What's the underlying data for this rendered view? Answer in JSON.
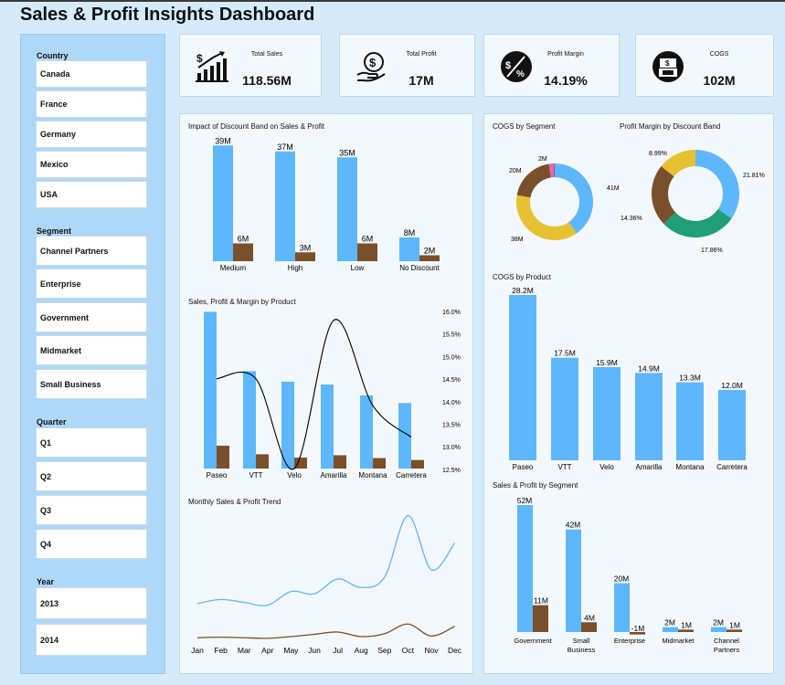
{
  "page": {
    "title": "Sales & Profit Insights Dashboard"
  },
  "filters": {
    "country": {
      "label": "Country",
      "items": [
        "Canada",
        "France",
        "Germany",
        "Mexico",
        "USA"
      ]
    },
    "segment": {
      "label": "Segment",
      "items": [
        "Channel Partners",
        "Enterprise",
        "Government",
        "Midmarket",
        "Small Business"
      ]
    },
    "quarter": {
      "label": "Quarter",
      "items": [
        "Q1",
        "Q2",
        "Q3",
        "Q4"
      ]
    },
    "year": {
      "label": "Year",
      "items": [
        "2013",
        "2014"
      ]
    }
  },
  "kpis": [
    {
      "label": "Total Sales",
      "value": "118.56M",
      "icon": "sales-growth-icon"
    },
    {
      "label": "Total Profit",
      "value": "17M",
      "icon": "money-hand-icon"
    },
    {
      "label": "Profit Margin",
      "value": "14.19%",
      "icon": "percent-icon"
    },
    {
      "label": "COGS",
      "value": "102M",
      "icon": "cash-box-icon"
    }
  ],
  "colors": {
    "sales": "#5eb7fb",
    "profit": "#7a4f2c",
    "line": "#000000",
    "donut_yellow": "#e6c233",
    "donut_green": "#1f9e77",
    "donut_pink": "#e06aa8"
  },
  "chart_data": [
    {
      "id": "discount",
      "type": "bar",
      "title": "Impact of Discount Band on Sales & Profit",
      "categories": [
        "Medium",
        "High",
        "Low",
        "No Discount"
      ],
      "series": [
        {
          "values": [
            39,
            37,
            35,
            8
          ]
        },
        {
          "values": [
            6,
            3,
            6,
            2
          ]
        }
      ],
      "labels_sales": [
        "39M",
        "37M",
        "35M",
        "8M"
      ],
      "labels_profit": [
        "6M",
        "3M",
        "6M",
        "2M"
      ],
      "ylim": [
        0,
        40
      ]
    },
    {
      "id": "product_combo",
      "type": "bar",
      "title": "Sales, Profit & Margin by Product",
      "categories": [
        "Paseo",
        "VTT",
        "Velo",
        "Amarilla",
        "Montana",
        "Carretera"
      ],
      "series": [
        {
          "values": [
            33.0,
            20.5,
            18.3,
            17.7,
            15.4,
            13.8
          ]
        },
        {
          "values": [
            4.8,
            3.0,
            2.3,
            2.8,
            2.2,
            1.8
          ]
        },
        {
          "values": [
            14.5,
            14.5,
            12.5,
            15.8,
            13.9,
            13.2
          ]
        }
      ],
      "y2_ticks": [
        "16.0%",
        "15.5%",
        "15.0%",
        "14.5%",
        "14.0%",
        "13.5%",
        "13.0%",
        "12.5%"
      ],
      "y2lim": [
        12.5,
        16.0
      ]
    },
    {
      "id": "monthly_trend",
      "type": "line",
      "title": "Monthly Sales & Profit Trend",
      "x": [
        "Jan",
        "Feb",
        "Mar",
        "Apr",
        "May",
        "Jun",
        "Jul",
        "Aug",
        "Sep",
        "Oct",
        "Nov",
        "Dec"
      ],
      "series": [
        {
          "values": [
            6.6,
            7.3,
            6.8,
            6.3,
            8.7,
            8.3,
            10.9,
            9.4,
            11.2,
            22.0,
            12.5,
            17.2
          ]
        },
        {
          "values": [
            0.6,
            0.7,
            0.6,
            0.5,
            0.8,
            1.2,
            1.6,
            0.8,
            1.3,
            3.0,
            0.9,
            2.6
          ]
        }
      ],
      "ylim": [
        0,
        24
      ]
    },
    {
      "id": "cogs_segment",
      "type": "pie",
      "title": "COGS by Segment",
      "values": [
        41,
        38,
        20,
        2,
        0.5
      ],
      "labels": [
        "41M",
        "38M",
        "20M",
        "2M",
        ""
      ]
    },
    {
      "id": "margin_discount",
      "type": "pie",
      "title": "Profit Margin by Discount Band",
      "values": [
        21.81,
        17.86,
        14.36,
        8.99
      ],
      "labels": [
        "21.81%",
        "17.86%",
        "14.36%",
        "8.99%"
      ]
    },
    {
      "id": "cogs_product",
      "type": "bar",
      "title": "COGS by Product",
      "categories": [
        "Paseo",
        "VTT",
        "Velo",
        "Amarilla",
        "Montana",
        "Carretera"
      ],
      "values": [
        28.2,
        17.5,
        15.9,
        14.9,
        13.3,
        12.0
      ],
      "labels": [
        "28.2M",
        "17.5M",
        "15.9M",
        "14.9M",
        "13.3M",
        "12.0M"
      ],
      "ylim": [
        0,
        30
      ]
    },
    {
      "id": "segment",
      "type": "bar",
      "title": "Sales & Profit by Segment",
      "categories": [
        "Government",
        "Small Business",
        "Enterprise",
        "Midmarket",
        "Channel Partners"
      ],
      "series": [
        {
          "values": [
            52,
            42,
            20,
            2,
            2
          ]
        },
        {
          "values": [
            11,
            4,
            -1,
            1,
            1
          ]
        }
      ],
      "labels_sales": [
        "52M",
        "42M",
        "20M",
        "2M",
        "2M"
      ],
      "labels_profit": [
        "11M",
        "4M",
        "-1M",
        "1M",
        "1M"
      ],
      "ylim": [
        0,
        54
      ]
    }
  ]
}
